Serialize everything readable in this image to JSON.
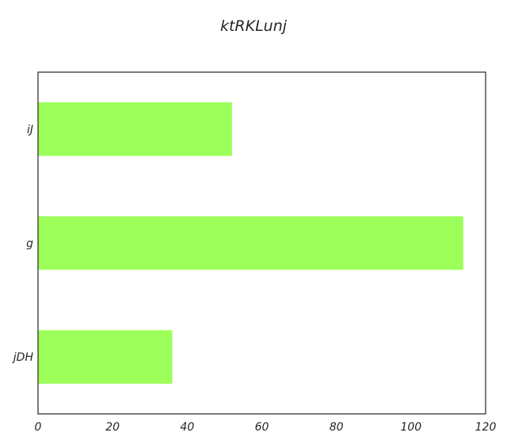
{
  "chart_data": {
    "type": "bar",
    "orientation": "horizontal",
    "title": "ktRKLunj",
    "categories": [
      "iJ",
      "g",
      "jDH"
    ],
    "values": [
      52,
      114,
      36
    ],
    "xlabel": "",
    "ylabel": "",
    "xlim": [
      0,
      120
    ],
    "xticks": [
      0,
      20,
      40,
      60,
      80,
      100,
      120
    ],
    "grid": false,
    "bar_color": "#9cff5a",
    "legend": "none"
  }
}
